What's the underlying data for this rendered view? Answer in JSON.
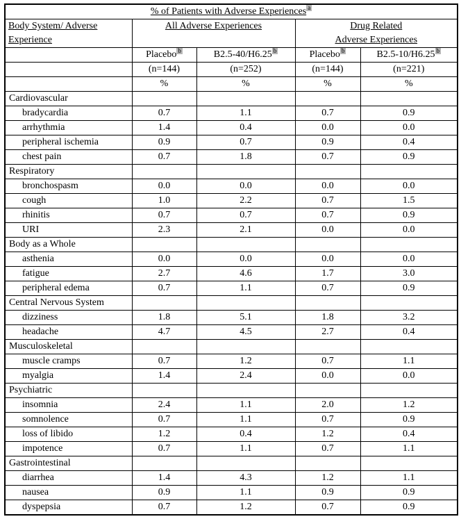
{
  "title": {
    "text": "% of Patients with Adverse Experiences",
    "sup": "a"
  },
  "columns": {
    "body_system": {
      "line1": "Body System/ Adverse",
      "line2": "Experience"
    },
    "group_all": "All Adverse Experiences",
    "group_drug": {
      "line1": "Drug Related",
      "line2": "Adverse Experiences"
    },
    "subheaders": [
      {
        "label": "Placebo",
        "sup": "b",
        "n": "(n=144)",
        "unit": "%"
      },
      {
        "label": "B2.5-40/H6.25",
        "sup": "b",
        "n": "(n=252)",
        "unit": "%"
      },
      {
        "label": "Placebo",
        "sup": "b",
        "n": "(n=144)",
        "unit": "%"
      },
      {
        "label": "B2.5-10/H6.25",
        "sup": "b",
        "n": "(n=221)",
        "unit": "%"
      }
    ]
  },
  "rows": [
    {
      "label": "Cardiovascular",
      "category": true,
      "values": [
        "",
        "",
        "",
        ""
      ]
    },
    {
      "label": "bradycardia",
      "category": false,
      "values": [
        "0.7",
        "1.1",
        "0.7",
        "0.9"
      ]
    },
    {
      "label": "arrhythmia",
      "category": false,
      "values": [
        "1.4",
        "0.4",
        "0.0",
        "0.0"
      ]
    },
    {
      "label": "peripheral ischemia",
      "category": false,
      "values": [
        "0.9",
        "0.7",
        "0.9",
        "0.4"
      ]
    },
    {
      "label": "chest pain",
      "category": false,
      "values": [
        "0.7",
        "1.8",
        "0.7",
        "0.9"
      ]
    },
    {
      "label": "Respiratory",
      "category": true,
      "values": [
        "",
        "",
        "",
        ""
      ]
    },
    {
      "label": "bronchospasm",
      "category": false,
      "values": [
        "0.0",
        "0.0",
        "0.0",
        "0.0"
      ]
    },
    {
      "label": "cough",
      "category": false,
      "values": [
        "1.0",
        "2.2",
        "0.7",
        "1.5"
      ]
    },
    {
      "label": "rhinitis",
      "category": false,
      "values": [
        "0.7",
        "0.7",
        "0.7",
        "0.9"
      ]
    },
    {
      "label": "URI",
      "category": false,
      "values": [
        "2.3",
        "2.1",
        "0.0",
        "0.0"
      ]
    },
    {
      "label": "Body as a Whole",
      "category": true,
      "values": [
        "",
        "",
        "",
        ""
      ]
    },
    {
      "label": "asthenia",
      "category": false,
      "values": [
        "0.0",
        "0.0",
        "0.0",
        "0.0"
      ]
    },
    {
      "label": "fatigue",
      "category": false,
      "values": [
        "2.7",
        "4.6",
        "1.7",
        "3.0"
      ]
    },
    {
      "label": "peripheral edema",
      "category": false,
      "values": [
        "0.7",
        "1.1",
        "0.7",
        "0.9"
      ]
    },
    {
      "label": "Central Nervous System",
      "category": true,
      "values": [
        "",
        "",
        "",
        ""
      ]
    },
    {
      "label": "dizziness",
      "category": false,
      "values": [
        "1.8",
        "5.1",
        "1.8",
        "3.2"
      ]
    },
    {
      "label": "headache",
      "category": false,
      "values": [
        "4.7",
        "4.5",
        "2.7",
        "0.4"
      ]
    },
    {
      "label": "Musculoskeletal",
      "category": true,
      "values": [
        "",
        "",
        "",
        ""
      ]
    },
    {
      "label": "muscle cramps",
      "category": false,
      "values": [
        "0.7",
        "1.2",
        "0.7",
        "1.1"
      ]
    },
    {
      "label": "myalgia",
      "category": false,
      "values": [
        "1.4",
        "2.4",
        "0.0",
        "0.0"
      ]
    },
    {
      "label": "Psychiatric",
      "category": true,
      "values": [
        "",
        "",
        "",
        ""
      ]
    },
    {
      "label": "insomnia",
      "category": false,
      "values": [
        "2.4",
        "1.1",
        "2.0",
        "1.2"
      ]
    },
    {
      "label": "somnolence",
      "category": false,
      "values": [
        "0.7",
        "1.1",
        "0.7",
        "0.9"
      ]
    },
    {
      "label": "loss of libido",
      "category": false,
      "values": [
        "1.2",
        "0.4",
        "1.2",
        "0.4"
      ]
    },
    {
      "label": "impotence",
      "category": false,
      "values": [
        "0.7",
        "1.1",
        "0.7",
        "1.1"
      ]
    },
    {
      "label": "Gastrointestinal",
      "category": true,
      "values": [
        "",
        "",
        "",
        ""
      ]
    },
    {
      "label": "diarrhea",
      "category": false,
      "values": [
        "1.4",
        "4.3",
        "1.2",
        "1.1"
      ]
    },
    {
      "label": "nausea",
      "category": false,
      "values": [
        "0.9",
        "1.1",
        "0.9",
        "0.9"
      ]
    },
    {
      "label": "dyspepsia",
      "category": false,
      "values": [
        "0.7",
        "1.2",
        "0.7",
        "0.9"
      ]
    }
  ]
}
